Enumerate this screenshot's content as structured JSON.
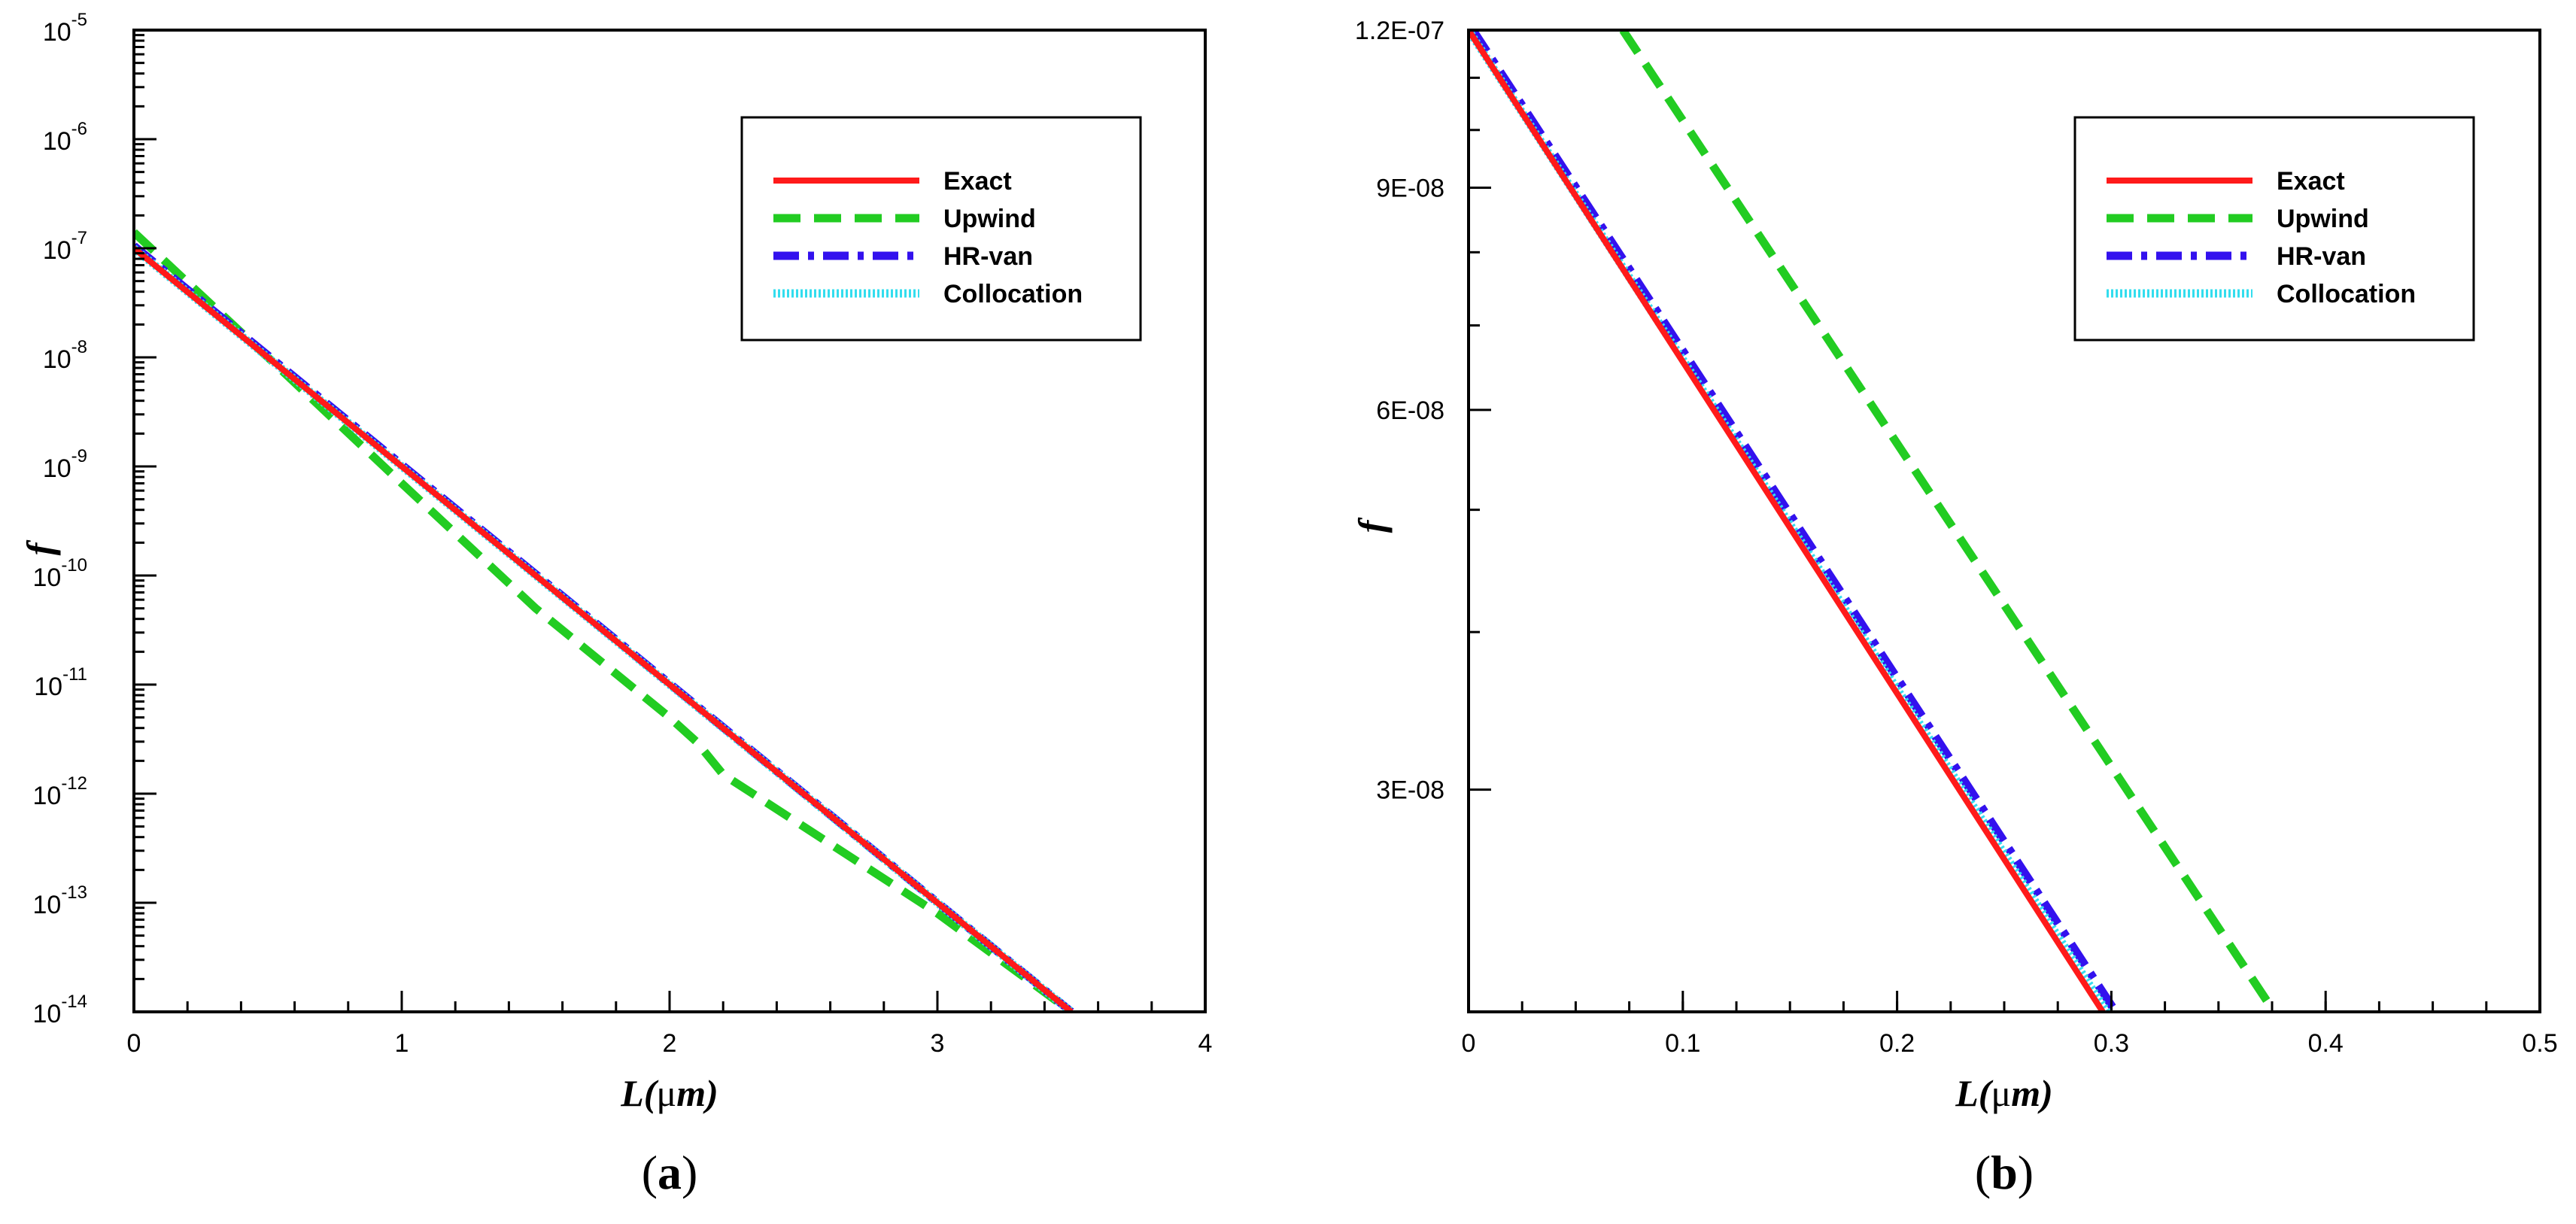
{
  "chart_data": [
    {
      "id": "a",
      "type": "line",
      "panel_label": [
        "(",
        "a",
        ")"
      ],
      "xlabel": {
        "main": "L",
        "unit_open": "(",
        "unit_mu": "μ",
        "unit_m": "m",
        "unit_close": ")"
      },
      "ylabel": "f",
      "x_range": [
        0,
        4
      ],
      "y_scale": "log",
      "y_range": [
        1e-14,
        1e-05
      ],
      "x_ticks": [
        {
          "v": 0,
          "label": "0"
        },
        {
          "v": 1,
          "label": "1"
        },
        {
          "v": 2,
          "label": "2"
        },
        {
          "v": 3,
          "label": "3"
        },
        {
          "v": 4,
          "label": "4"
        }
      ],
      "x_minor_step": 0.2,
      "y_ticks": [
        {
          "exp": -14,
          "base": "10",
          "sup": "-14"
        },
        {
          "exp": -13,
          "base": "10",
          "sup": "-13"
        },
        {
          "exp": -12,
          "base": "10",
          "sup": "-12"
        },
        {
          "exp": -11,
          "base": "10",
          "sup": "-11"
        },
        {
          "exp": -10,
          "base": "10",
          "sup": "-10"
        },
        {
          "exp": -9,
          "base": "10",
          "sup": "-9"
        },
        {
          "exp": -8,
          "base": "10",
          "sup": "-8"
        },
        {
          "exp": -7,
          "base": "10",
          "sup": "-7"
        },
        {
          "exp": -6,
          "base": "10",
          "sup": "-6"
        },
        {
          "exp": -5,
          "base": "10",
          "sup": "-5"
        }
      ],
      "legend": {
        "position": "top-right",
        "entries": [
          {
            "name": "Exact",
            "color": "#ff1a1a",
            "dash": "solid"
          },
          {
            "name": "Upwind",
            "color": "#22cc22",
            "dash": "dash"
          },
          {
            "name": "HR-van",
            "color": "#3311ee",
            "dash": "dashdot"
          },
          {
            "name": "Collocation",
            "color": "#33ddee",
            "dash": "dotted"
          }
        ]
      },
      "series": [
        {
          "name": "Collocation",
          "x": [
            0,
            3.5
          ],
          "y": [
            1e-07,
            1e-14
          ]
        },
        {
          "name": "Exact",
          "x": [
            0,
            3.5
          ],
          "y": [
            1e-07,
            1e-14
          ]
        },
        {
          "name": "HR-van",
          "x": [
            0,
            3.5
          ],
          "y": [
            1.05e-07,
            1e-14
          ]
        },
        {
          "name": "Upwind",
          "x": [
            0,
            0.5,
            1.0,
            1.5,
            2.0,
            2.1,
            2.2,
            2.5,
            3.0,
            3.5
          ],
          "y": [
            1.4e-07,
            1e-08,
            7e-10,
            5e-11,
            5e-12,
            3e-12,
            1.5e-12,
            5e-13,
            8e-14,
            1e-14
          ]
        }
      ]
    },
    {
      "id": "b",
      "type": "line",
      "panel_label": [
        "(",
        "b",
        ")"
      ],
      "xlabel": {
        "main": "L",
        "unit_open": "(",
        "unit_mu": "μ",
        "unit_m": "m",
        "unit_close": ")"
      },
      "ylabel": "f",
      "x_range": [
        0,
        0.5
      ],
      "y_scale": "log",
      "y_range": [
        2e-08,
        1.2e-07
      ],
      "x_ticks": [
        {
          "v": 0,
          "label": "0"
        },
        {
          "v": 0.1,
          "label": "0.1"
        },
        {
          "v": 0.2,
          "label": "0.2"
        },
        {
          "v": 0.3,
          "label": "0.3"
        },
        {
          "v": 0.4,
          "label": "0.4"
        },
        {
          "v": 0.5,
          "label": "0.5"
        }
      ],
      "x_minor_step": 0.025,
      "y_ticks": [
        {
          "v": 1.2e-07,
          "label": "1.2E-07"
        },
        {
          "v": 9e-08,
          "label": "9E-08"
        },
        {
          "v": 6e-08,
          "label": "6E-08"
        },
        {
          "v": 3e-08,
          "label": "3E-08"
        }
      ],
      "legend": {
        "position": "top-right",
        "entries": [
          {
            "name": "Exact",
            "color": "#ff1a1a",
            "dash": "solid"
          },
          {
            "name": "Upwind",
            "color": "#22cc22",
            "dash": "dash"
          },
          {
            "name": "HR-van",
            "color": "#3311ee",
            "dash": "dashdot"
          },
          {
            "name": "Collocation",
            "color": "#33ddee",
            "dash": "dotted"
          }
        ]
      },
      "series": [
        {
          "name": "Exact",
          "x": [
            0,
            0.296
          ],
          "y": [
            1.2e-07,
            2e-08
          ]
        },
        {
          "name": "Collocation",
          "x": [
            0,
            0.298
          ],
          "y": [
            1.2e-07,
            2e-08
          ]
        },
        {
          "name": "HR-van",
          "x": [
            0.002,
            0.302
          ],
          "y": [
            1.2e-07,
            2e-08
          ]
        },
        {
          "name": "Upwind",
          "x": [
            0.072,
            0.376
          ],
          "y": [
            1.2e-07,
            2e-08
          ]
        }
      ]
    }
  ]
}
